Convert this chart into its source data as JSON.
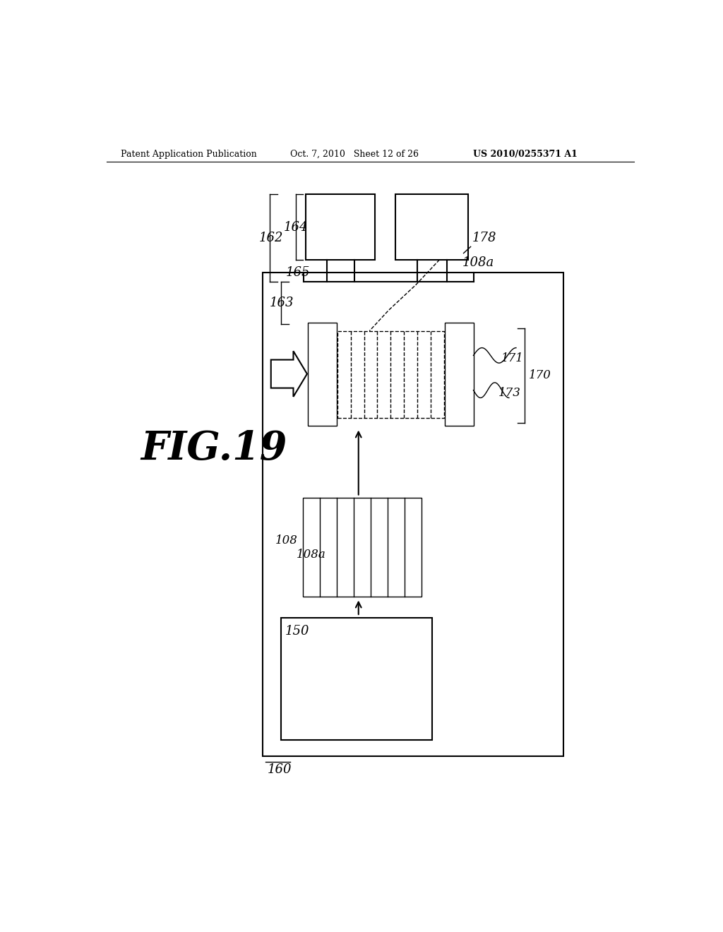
{
  "bg_color": "#ffffff",
  "header_left": "Patent Application Publication",
  "header_mid": "Oct. 7, 2010   Sheet 12 of 26",
  "header_right": "US 2010/0255371 A1",
  "fig_label": "FIG.19",
  "label_160": "160",
  "label_150": "150",
  "label_108": "108",
  "label_108a_lower": "108a",
  "label_162": "162",
  "label_163": "163",
  "label_164": "164",
  "label_165": "165",
  "label_108a_upper": "108a",
  "label_178": "178",
  "label_170": "170",
  "label_171": "171",
  "label_173": "173"
}
